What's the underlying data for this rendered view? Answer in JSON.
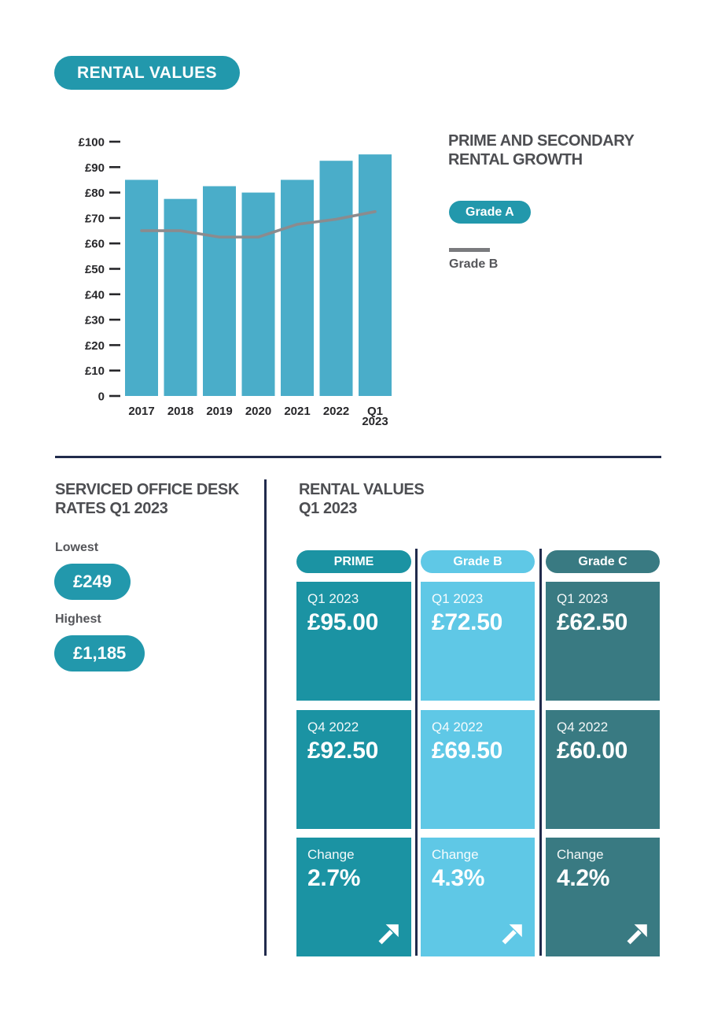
{
  "badge": {
    "label": "RENTAL VALUES"
  },
  "colors": {
    "teal": "#2298ac",
    "bar_blue": "#4aadc9",
    "trend_line_gray": "#8b8b8e",
    "navy_divider": "#212b4c",
    "prime_teal": "#1b93a3",
    "grade_b_blue": "#5fc8e6",
    "grade_c_slate": "#397a82",
    "heading_gray": "#4d4e52"
  },
  "growth_panel": {
    "heading_line1": "PRIME AND SECONDARY",
    "heading_line2": "RENTAL GROWTH",
    "legend": {
      "grade_a_label": "Grade A",
      "grade_b_label": "Grade B"
    }
  },
  "chart_data": {
    "type": "bar",
    "title": "PRIME AND SECONDARY RENTAL GROWTH",
    "categories": [
      "2017",
      "2018",
      "2019",
      "2020",
      "2021",
      "2022",
      "Q1 2023"
    ],
    "series": [
      {
        "name": "Grade A",
        "type": "bar",
        "values": [
          85,
          77.5,
          82.5,
          80,
          85,
          92.5,
          95
        ]
      },
      {
        "name": "Grade B",
        "type": "line",
        "values": [
          65,
          65,
          62.5,
          62.5,
          67.5,
          69.5,
          72.5
        ]
      }
    ],
    "ylim": [
      0,
      100
    ],
    "ytick_step": 10,
    "ytick_prefix": "£",
    "zero_tick_label": "0",
    "grid": false,
    "legend_position": "right",
    "xlabel": "",
    "ylabel": ""
  },
  "desk_rates": {
    "heading_line1": "SERVICED OFFICE DESK",
    "heading_line2": "RATES Q1 2023",
    "lowest_label": "Lowest",
    "lowest_value": "£249",
    "highest_label": "Highest",
    "highest_value": "£1,185"
  },
  "rental_values": {
    "heading_line1": "RENTAL VALUES",
    "heading_line2": "Q1 2023",
    "columns": [
      {
        "header": "PRIME",
        "tiles": [
          {
            "label": "Q1 2023",
            "value": "£95.00"
          },
          {
            "label": "Q4 2022",
            "value": "£92.50"
          },
          {
            "label": "Change",
            "value": "2.7%"
          }
        ]
      },
      {
        "header": "Grade B",
        "tiles": [
          {
            "label": "Q1 2023",
            "value": "£72.50"
          },
          {
            "label": "Q4 2022",
            "value": "£69.50"
          },
          {
            "label": "Change",
            "value": "4.3%"
          }
        ]
      },
      {
        "header": "Grade C",
        "tiles": [
          {
            "label": "Q1 2023",
            "value": "£62.50"
          },
          {
            "label": "Q4 2022",
            "value": "£60.00"
          },
          {
            "label": "Change",
            "value": "4.2%"
          }
        ]
      }
    ]
  }
}
